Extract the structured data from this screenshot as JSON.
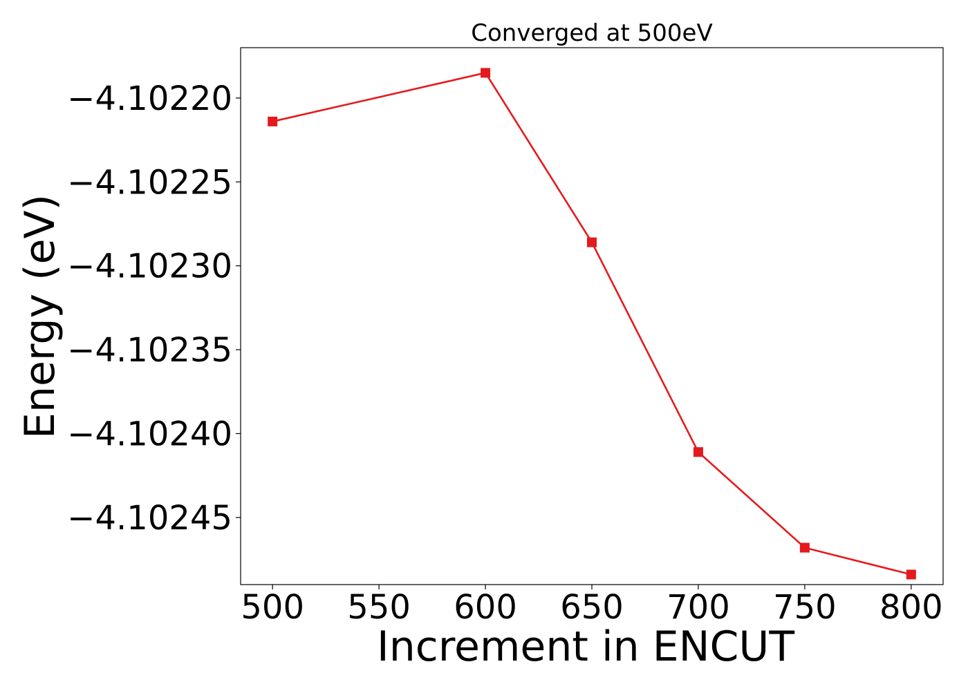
{
  "chart_data": {
    "type": "line",
    "title": "Converged at 500eV",
    "xlabel": "Increment in ENCUT",
    "ylabel": "Energy (eV)",
    "x": [
      500,
      600,
      650,
      700,
      750,
      800
    ],
    "series": [
      {
        "values": [
          -4.102214,
          -4.102185,
          -4.102286,
          -4.102411,
          -4.102468,
          -4.102484
        ],
        "color": "#e41a1c",
        "marker": "square"
      }
    ],
    "xlim": [
      485,
      815
    ],
    "ylim": [
      -4.10249,
      -4.10217
    ],
    "xticks": [
      500,
      550,
      600,
      650,
      700,
      750,
      800
    ],
    "xtick_labels": [
      "500",
      "550",
      "600",
      "650",
      "700",
      "750",
      "800"
    ],
    "yticks": [
      -4.1022,
      -4.10225,
      -4.1023,
      -4.10235,
      -4.1024,
      -4.10245
    ],
    "ytick_labels": [
      "−4.10220",
      "−4.10225",
      "−4.10230",
      "−4.10235",
      "−4.10240",
      "−4.10245"
    ],
    "grid": false,
    "legend": "none"
  }
}
